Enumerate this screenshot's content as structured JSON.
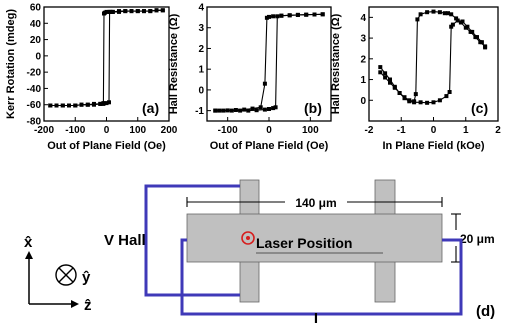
{
  "chart_data": [
    {
      "panel": "(a)",
      "type": "line",
      "xlabel": "Out of Plane Field (Oe)",
      "ylabel": "Kerr Rotation (mdeg)",
      "xlim": [
        -200,
        200
      ],
      "ylim": [
        -80,
        60
      ],
      "xticks": [
        -200,
        -100,
        0,
        100,
        200
      ],
      "yticks": [
        -80,
        -60,
        -40,
        -20,
        0,
        20,
        40,
        60
      ],
      "xtick_labels": [
        "-200",
        "-100",
        "0",
        "100",
        "200"
      ],
      "ytick_labels": [
        "-80",
        "-60",
        "-40",
        "-20",
        "0",
        "20",
        "40",
        "60"
      ],
      "series": [
        {
          "x": [
            -180,
            -160,
            -140,
            -120,
            -100,
            -80,
            -60,
            -40,
            -20,
            -10,
            0,
            8,
            10,
            14,
            20,
            40,
            60,
            80,
            100,
            120,
            140,
            160,
            180
          ],
          "y": [
            -61,
            -61,
            -61,
            -61,
            -61,
            -60,
            -60,
            -60,
            -59,
            -59,
            -58,
            -57,
            54,
            54,
            54,
            54,
            55,
            55,
            55,
            55,
            55,
            56,
            56
          ]
        },
        {
          "x": [
            180,
            160,
            140,
            120,
            100,
            80,
            60,
            40,
            20,
            10,
            0,
            -5,
            -8,
            -10,
            -20,
            -40,
            -60,
            -80,
            -100,
            -120,
            -140,
            -160,
            -180
          ],
          "y": [
            56,
            56,
            55,
            55,
            55,
            55,
            55,
            55,
            54,
            54,
            54,
            53,
            52,
            -58,
            -59,
            -59,
            -60,
            -60,
            -61,
            -61,
            -61,
            -61,
            -61
          ]
        }
      ]
    },
    {
      "panel": "(b)",
      "type": "line",
      "xlabel": "Out of Plane Field (Oe)",
      "ylabel": "Hall Resistance (Ω)",
      "xlim": [
        -150,
        150
      ],
      "ylim": [
        -1.5,
        4
      ],
      "xticks": [
        -100,
        0,
        100
      ],
      "yticks": [
        -1,
        0,
        1,
        2,
        3,
        4
      ],
      "xtick_labels": [
        "-100",
        "0",
        "100"
      ],
      "ytick_labels": [
        "-1",
        "0",
        "1",
        "2",
        "3",
        "4"
      ],
      "series": [
        {
          "x": [
            -130,
            -110,
            -90,
            -70,
            -50,
            -30,
            -10,
            0,
            10,
            16,
            20,
            30,
            50,
            70,
            90,
            110,
            130
          ],
          "y": [
            -1.0,
            -1.0,
            -1.0,
            -1.0,
            -1.0,
            -0.98,
            -0.95,
            -0.92,
            -0.88,
            -0.84,
            3.55,
            3.58,
            3.6,
            3.62,
            3.63,
            3.64,
            3.65
          ]
        },
        {
          "x": [
            130,
            110,
            90,
            70,
            50,
            30,
            10,
            0,
            -5,
            -10,
            -20,
            -40,
            -60,
            -80,
            -100,
            -120,
            -130
          ],
          "y": [
            3.65,
            3.64,
            3.63,
            3.62,
            3.6,
            3.58,
            3.55,
            3.52,
            3.48,
            0.3,
            -0.84,
            -0.9,
            -0.95,
            -0.97,
            -0.99,
            -1.0,
            -1.0
          ]
        }
      ]
    },
    {
      "panel": "(c)",
      "type": "line",
      "xlabel": "In Plane Field (kOe)",
      "ylabel": "Hall Resistance (Ω)",
      "xlim": [
        -2,
        2
      ],
      "ylim": [
        -1,
        4.5
      ],
      "xticks": [
        -2,
        -1,
        0,
        1,
        2
      ],
      "yticks": [
        0,
        1,
        2,
        3,
        4
      ],
      "xtick_labels": [
        "-2",
        "-1",
        "0",
        "1",
        "2"
      ],
      "ytick_labels": [
        "0",
        "1",
        "2",
        "3",
        "4"
      ],
      "series": [
        {
          "x": [
            1.6,
            1.45,
            1.3,
            1.15,
            1.0,
            0.85,
            0.7,
            0.55,
            0.45,
            0.35,
            0.2,
            0.0,
            -0.2,
            -0.4,
            -0.5,
            -0.55,
            -0.6,
            -0.75,
            -0.9,
            -1.05,
            -1.2,
            -1.35,
            -1.5,
            -1.65
          ],
          "y": [
            2.6,
            2.8,
            3.05,
            3.3,
            3.5,
            3.75,
            3.95,
            4.15,
            4.2,
            4.2,
            4.25,
            4.28,
            4.25,
            4.15,
            3.9,
            0.3,
            -0.05,
            0.0,
            0.15,
            0.35,
            0.6,
            0.85,
            1.1,
            1.35
          ]
        },
        {
          "x": [
            -1.65,
            -1.5,
            -1.35,
            -1.2,
            -1.05,
            -0.9,
            -0.75,
            -0.6,
            -0.4,
            -0.2,
            0.0,
            0.2,
            0.4,
            0.5,
            0.55,
            0.6,
            0.75,
            0.9,
            1.05,
            1.2,
            1.35,
            1.5,
            1.6
          ],
          "y": [
            1.6,
            1.3,
            1.0,
            0.65,
            0.35,
            0.1,
            -0.05,
            -0.1,
            -0.1,
            -0.12,
            -0.1,
            0.0,
            0.2,
            0.4,
            3.55,
            3.65,
            3.85,
            3.8,
            3.55,
            3.3,
            3.05,
            2.8,
            2.55
          ]
        }
      ]
    }
  ],
  "panel_d": {
    "label": "(d)",
    "v_hall": "V Hall",
    "current": "I",
    "dimension_length": "140 μm",
    "dimension_width": "20 μm",
    "laser_position": "Laser Position",
    "axis_x": "x̂",
    "axis_y": "ŷ",
    "axis_z": "ẑ",
    "colors": {
      "wire": "#3f39b8",
      "device": "#c0c0c0",
      "laser": "#d61f1f"
    }
  }
}
